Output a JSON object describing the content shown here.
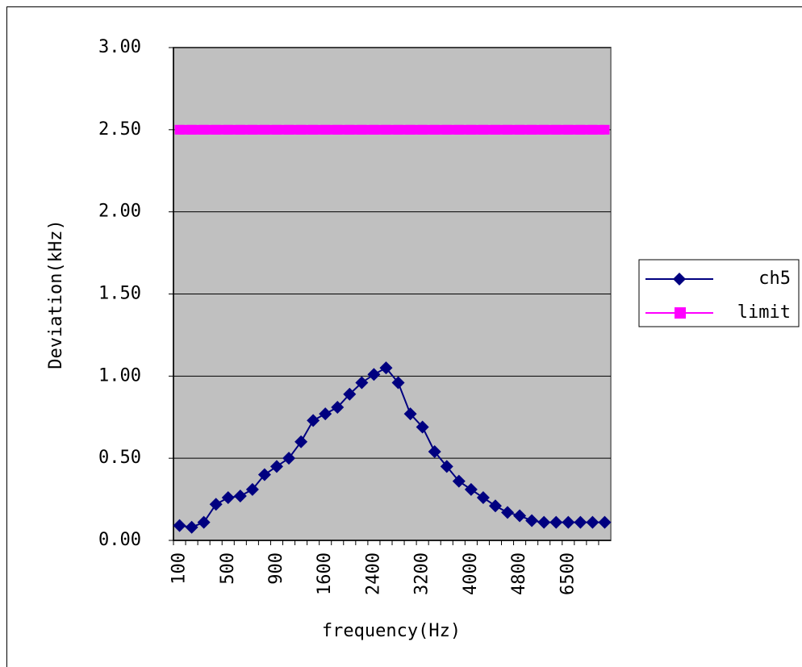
{
  "chart_data": {
    "type": "line",
    "y_label": "Deviation(kHz)",
    "x_label": "frequency(Hz)",
    "categories": [
      "100",
      null,
      null,
      null,
      "500",
      null,
      null,
      null,
      "900",
      null,
      null,
      null,
      "1600",
      null,
      null,
      null,
      "2400",
      null,
      null,
      null,
      "3200",
      null,
      null,
      null,
      "4000",
      null,
      null,
      null,
      "4800",
      null,
      null,
      null,
      "6500",
      null,
      null,
      null
    ],
    "series": [
      {
        "name": "ch5",
        "color": "#000080",
        "marker": "diamond",
        "values": [
          0.09,
          0.08,
          0.11,
          0.22,
          0.26,
          0.27,
          0.31,
          0.4,
          0.45,
          0.5,
          0.6,
          0.73,
          0.77,
          0.81,
          0.89,
          0.96,
          1.01,
          1.05,
          0.96,
          0.77,
          0.69,
          0.54,
          0.45,
          0.36,
          0.31,
          0.26,
          0.21,
          0.17,
          0.15,
          0.12,
          0.11,
          0.11,
          0.11,
          0.11,
          0.11,
          0.11
        ]
      },
      {
        "name": "limit",
        "color": "#ff00ff",
        "marker": "square",
        "values": [
          2.5,
          2.5,
          2.5,
          2.5,
          2.5,
          2.5,
          2.5,
          2.5,
          2.5,
          2.5,
          2.5,
          2.5,
          2.5,
          2.5,
          2.5,
          2.5,
          2.5,
          2.5,
          2.5,
          2.5,
          2.5,
          2.5,
          2.5,
          2.5,
          2.5,
          2.5,
          2.5,
          2.5,
          2.5,
          2.5,
          2.5,
          2.5,
          2.5,
          2.5,
          2.5,
          2.5
        ]
      }
    ],
    "ylim": [
      0,
      3
    ],
    "yticks": [
      {
        "value": 0,
        "label": "0.00"
      },
      {
        "value": 0.5,
        "label": "0.50"
      },
      {
        "value": 1,
        "label": "1.00"
      },
      {
        "value": 1.5,
        "label": "1.50"
      },
      {
        "value": 2,
        "label": "2.00"
      },
      {
        "value": 2.5,
        "label": "2.50"
      },
      {
        "value": 3,
        "label": "3.00"
      }
    ],
    "grid": true,
    "plot_background": "#c0c0c0",
    "legend": "right"
  }
}
